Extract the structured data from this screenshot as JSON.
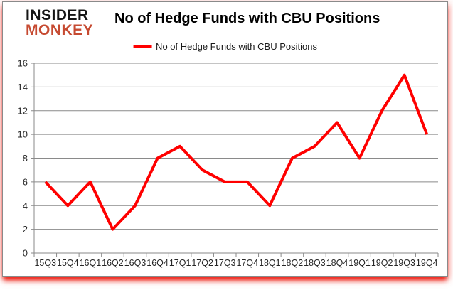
{
  "logo": {
    "line1": "INSIDER",
    "line2": "MONKEY"
  },
  "header": {
    "title": "No of Hedge Funds with CBU Positions"
  },
  "colors": {
    "line": "#FF0000",
    "logo_red": "#C64A31",
    "grid": "#8A8A8A",
    "axis_line": "#8A8A8A",
    "tick_text": "#262626",
    "frame_border": "#8A8A8A",
    "shadow_red": "#ED1C12"
  },
  "chart_data": {
    "type": "line",
    "title": "No of Hedge Funds with CBU Positions",
    "legend": "No of Hedge Funds with CBU Positions",
    "legend_position": "top",
    "categories": [
      "15Q3",
      "15Q4",
      "16Q1",
      "16Q2",
      "16Q3",
      "16Q4",
      "17Q1",
      "17Q2",
      "17Q3",
      "17Q4",
      "18Q1",
      "18Q2",
      "18Q3",
      "18Q4",
      "19Q1",
      "19Q2",
      "19Q3",
      "19Q4"
    ],
    "values": [
      6,
      4,
      6,
      2,
      4,
      8,
      9,
      7,
      6,
      6,
      4,
      8,
      9,
      11,
      8,
      12,
      15,
      10
    ],
    "xlabel": "",
    "ylabel": "",
    "ylim": [
      0,
      16
    ],
    "ytick_step": 2,
    "grid": true,
    "line_color": "#FF0000",
    "line_width": 4
  }
}
